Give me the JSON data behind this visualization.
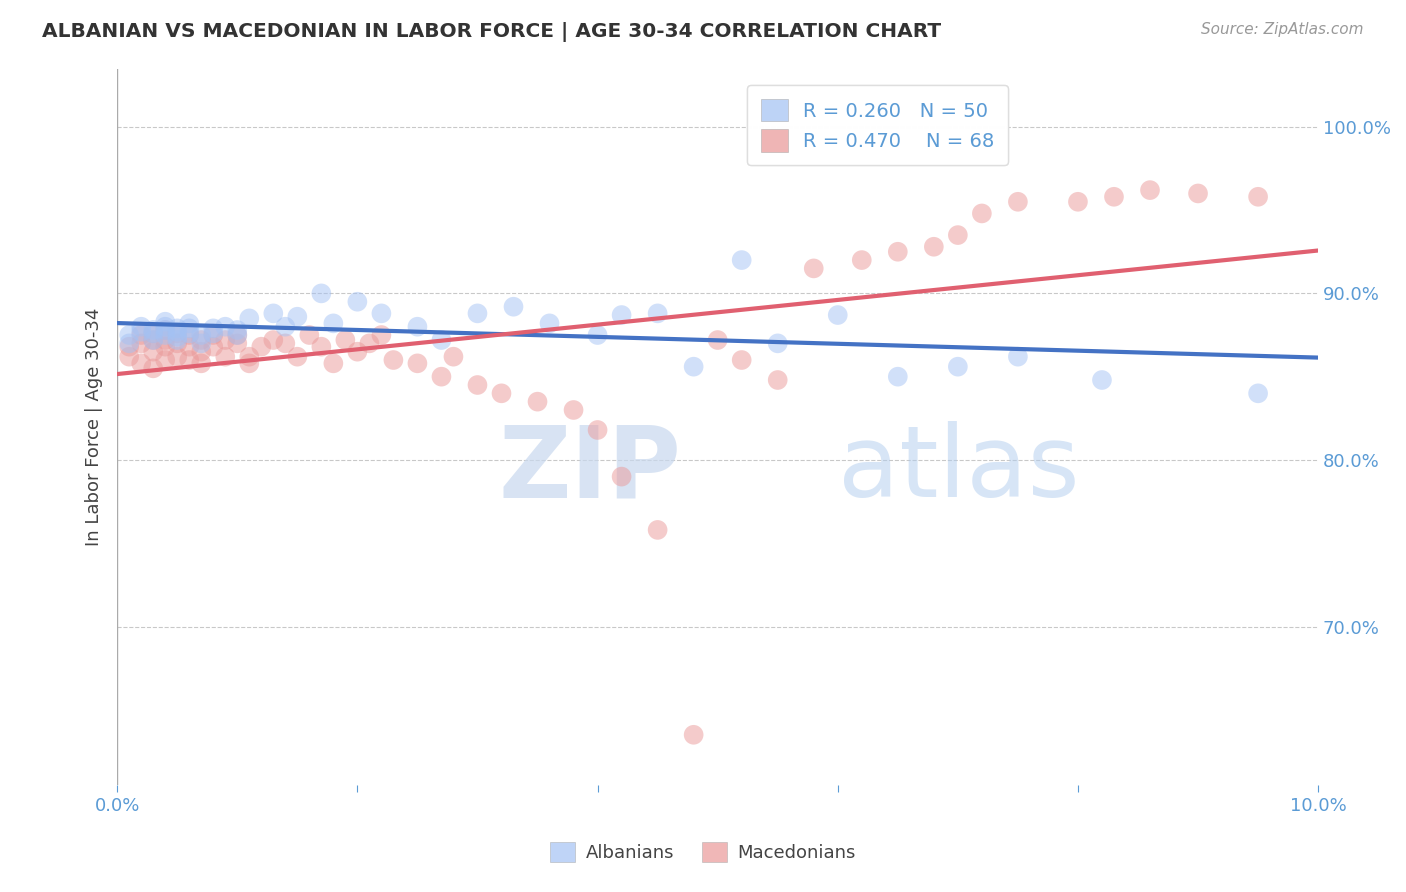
{
  "title": "ALBANIAN VS MACEDONIAN IN LABOR FORCE | AGE 30-34 CORRELATION CHART",
  "source_text": "Source: ZipAtlas.com",
  "ylabel": "In Labor Force | Age 30-34",
  "xlim": [
    0.0,
    0.1
  ],
  "ylim": [
    0.605,
    1.035
  ],
  "yticks": [
    0.7,
    0.8,
    0.9,
    1.0
  ],
  "ytick_labels": [
    "70.0%",
    "80.0%",
    "90.0%",
    "100.0%"
  ],
  "xtick_positions": [
    0.0,
    0.02,
    0.04,
    0.06,
    0.08,
    0.1
  ],
  "xtick_labels": [
    "0.0%",
    "",
    "",
    "",
    "",
    "10.0%"
  ],
  "legend_r_blue": "R = 0.260",
  "legend_n_blue": "N = 50",
  "legend_r_pink": "R = 0.470",
  "legend_n_pink": "N = 68",
  "blue_color": "#a4c2f4",
  "pink_color": "#ea9999",
  "blue_line_color": "#4472c4",
  "pink_line_color": "#e06070",
  "background_color": "#ffffff",
  "grid_color": "#bbbbbb",
  "title_color": "#333333",
  "axis_color": "#5b9bd5",
  "tick_color": "#5b9bd5",
  "albanians_x": [
    0.001,
    0.001,
    0.002,
    0.002,
    0.003,
    0.003,
    0.003,
    0.004,
    0.004,
    0.004,
    0.004,
    0.005,
    0.005,
    0.005,
    0.005,
    0.006,
    0.006,
    0.006,
    0.007,
    0.007,
    0.008,
    0.008,
    0.009,
    0.01,
    0.01,
    0.011,
    0.013,
    0.014,
    0.015,
    0.017,
    0.018,
    0.02,
    0.022,
    0.025,
    0.027,
    0.03,
    0.033,
    0.036,
    0.04,
    0.042,
    0.045,
    0.048,
    0.052,
    0.055,
    0.06,
    0.065,
    0.07,
    0.075,
    0.082,
    0.095
  ],
  "albanians_y": [
    0.87,
    0.875,
    0.88,
    0.877,
    0.878,
    0.876,
    0.872,
    0.883,
    0.88,
    0.878,
    0.875,
    0.877,
    0.879,
    0.874,
    0.872,
    0.879,
    0.882,
    0.876,
    0.875,
    0.87,
    0.879,
    0.876,
    0.88,
    0.878,
    0.875,
    0.885,
    0.888,
    0.88,
    0.886,
    0.9,
    0.882,
    0.895,
    0.888,
    0.88,
    0.872,
    0.888,
    0.892,
    0.882,
    0.875,
    0.887,
    0.888,
    0.856,
    0.92,
    0.87,
    0.887,
    0.85,
    0.856,
    0.862,
    0.848,
    0.84
  ],
  "macedonians_x": [
    0.001,
    0.001,
    0.002,
    0.002,
    0.002,
    0.003,
    0.003,
    0.003,
    0.003,
    0.004,
    0.004,
    0.004,
    0.004,
    0.005,
    0.005,
    0.005,
    0.006,
    0.006,
    0.006,
    0.007,
    0.007,
    0.007,
    0.008,
    0.008,
    0.009,
    0.009,
    0.01,
    0.01,
    0.011,
    0.011,
    0.012,
    0.013,
    0.014,
    0.015,
    0.016,
    0.017,
    0.018,
    0.019,
    0.02,
    0.021,
    0.022,
    0.023,
    0.025,
    0.027,
    0.028,
    0.03,
    0.032,
    0.035,
    0.038,
    0.04,
    0.042,
    0.045,
    0.048,
    0.05,
    0.052,
    0.055,
    0.058,
    0.062,
    0.065,
    0.068,
    0.07,
    0.072,
    0.075,
    0.08,
    0.083,
    0.086,
    0.09,
    0.095
  ],
  "macedonians_y": [
    0.868,
    0.862,
    0.875,
    0.87,
    0.858,
    0.876,
    0.872,
    0.865,
    0.855,
    0.878,
    0.872,
    0.868,
    0.86,
    0.876,
    0.87,
    0.862,
    0.875,
    0.868,
    0.86,
    0.872,
    0.865,
    0.858,
    0.875,
    0.868,
    0.872,
    0.862,
    0.875,
    0.87,
    0.862,
    0.858,
    0.868,
    0.872,
    0.87,
    0.862,
    0.875,
    0.868,
    0.858,
    0.872,
    0.865,
    0.87,
    0.875,
    0.86,
    0.858,
    0.85,
    0.862,
    0.845,
    0.84,
    0.835,
    0.83,
    0.818,
    0.79,
    0.758,
    0.635,
    0.872,
    0.86,
    0.848,
    0.915,
    0.92,
    0.925,
    0.928,
    0.935,
    0.948,
    0.955,
    0.955,
    0.958,
    0.962,
    0.96,
    0.958
  ]
}
